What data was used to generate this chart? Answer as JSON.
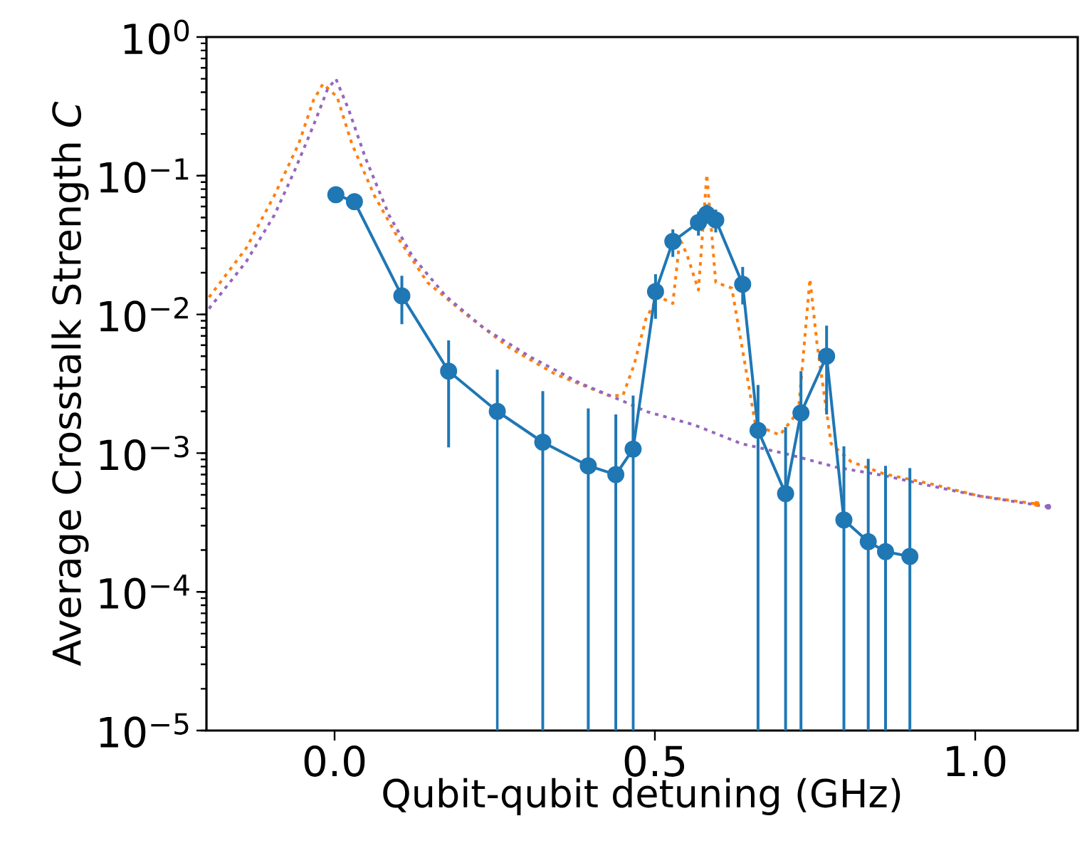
{
  "chart_data": {
    "type": "line",
    "xlabel": "Qubit-qubit detuning (GHz)",
    "ylabel": "Average Crosstalk Strength *C*",
    "log": "y",
    "xlim": [
      -0.2,
      1.16
    ],
    "ylim": [
      1e-05,
      1
    ],
    "xticks": [
      {
        "value": 0,
        "label": "0.0"
      },
      {
        "value": 0.5,
        "label": "0.5"
      },
      {
        "value": 1,
        "label": "1.0"
      }
    ],
    "yticks": [
      {
        "value": 1e-05,
        "label": "10$^{−5}$"
      },
      {
        "value": 0.0001,
        "label": "10$^{−4}$"
      },
      {
        "value": 0.001,
        "label": "10$^{−3}$"
      },
      {
        "value": 0.01,
        "label": "10$^{−2}$"
      },
      {
        "value": 0.1,
        "label": "10$^{−1}$"
      },
      {
        "value": 1,
        "label": "10$^{0}$"
      }
    ],
    "series": [
      {
        "color": "#ff7f0e",
        "line_style": "dotted",
        "marker": "none",
        "x": [
          -0.196,
          -0.138,
          -0.094,
          -0.056,
          -0.033,
          -0.018,
          0.004,
          0.027,
          0.062,
          0.1,
          0.145,
          0.205,
          0.272,
          0.345,
          0.428,
          0.45,
          0.468,
          0.486,
          0.505,
          0.528,
          0.539,
          0.55,
          0.568,
          0.581,
          0.595,
          0.62,
          0.635,
          0.657,
          0.695,
          0.724,
          0.742,
          0.753,
          0.775,
          0.806,
          0.857,
          0.931,
          1.007,
          1.096
        ],
        "values": [
          0.0133,
          0.03,
          0.072,
          0.17,
          0.35,
          0.46,
          0.37,
          0.17,
          0.072,
          0.035,
          0.017,
          0.01,
          0.0058,
          0.0037,
          0.0026,
          0.0026,
          0.0044,
          0.0093,
          0.0135,
          0.012,
          0.035,
          0.027,
          0.015,
          0.102,
          0.017,
          0.0155,
          0.0062,
          0.0016,
          0.00135,
          0.002,
          0.018,
          0.0062,
          0.00117,
          0.00087,
          0.00071,
          0.0006,
          0.00049,
          0.00043
        ]
      },
      {
        "color": "#9467bd",
        "line_style": "dotted",
        "marker": "none",
        "x": [
          -0.196,
          -0.138,
          -0.094,
          -0.063,
          -0.033,
          -0.011,
          0.002,
          0.022,
          0.048,
          0.085,
          0.122,
          0.174,
          0.234,
          0.307,
          0.383,
          0.457,
          0.486,
          0.561,
          0.635,
          0.708,
          0.784,
          0.857,
          0.931,
          1.007,
          1.114
        ],
        "values": [
          0.011,
          0.024,
          0.052,
          0.107,
          0.23,
          0.42,
          0.5,
          0.3,
          0.135,
          0.052,
          0.026,
          0.0135,
          0.0079,
          0.0049,
          0.0032,
          0.0023,
          0.002,
          0.0016,
          0.00117,
          0.00098,
          0.00079,
          0.00069,
          0.00058,
          0.00049,
          0.00041
        ]
      },
      {
        "color": "#1f77b4",
        "line_style": "solid",
        "marker": "circle",
        "x": [
          0.002,
          0.031,
          0.105,
          0.178,
          0.254,
          0.325,
          0.396,
          0.439,
          0.466,
          0.501,
          0.528,
          0.568,
          0.581,
          0.595,
          0.637,
          0.661,
          0.704,
          0.728,
          0.768,
          0.795,
          0.833,
          0.86,
          0.898
        ],
        "values": [
          0.073,
          0.065,
          0.0136,
          0.0039,
          0.002,
          0.0012,
          0.00081,
          0.0007,
          0.00107,
          0.0146,
          0.0336,
          0.046,
          0.053,
          0.048,
          0.0165,
          0.00146,
          0.00051,
          0.00195,
          0.005,
          0.00033,
          0.00023,
          0.000195,
          0.00018
        ],
        "errors": [
          [
            0.066,
            0.081
          ],
          [
            0.058,
            0.073
          ],
          [
            0.0085,
            0.019
          ],
          [
            0.0011,
            0.0065
          ],
          [
            1e-05,
            0.004
          ],
          [
            1e-05,
            0.0028
          ],
          [
            1e-05,
            0.0021
          ],
          [
            1e-05,
            0.0019
          ],
          [
            1e-05,
            0.0026
          ],
          [
            0.0093,
            0.0195
          ],
          [
            0.026,
            0.041
          ],
          [
            0.037,
            0.055
          ],
          [
            0.045,
            0.062
          ],
          [
            0.039,
            0.057
          ],
          [
            0.0118,
            0.022
          ],
          [
            1e-05,
            0.0031
          ],
          [
            1e-05,
            0.00154
          ],
          [
            1e-05,
            0.0039
          ],
          [
            0.0019,
            0.0083
          ],
          [
            1e-05,
            0.00112
          ],
          [
            1e-05,
            0.00091
          ],
          [
            1e-05,
            0.00081
          ],
          [
            1e-05,
            0.00078
          ]
        ]
      }
    ]
  }
}
